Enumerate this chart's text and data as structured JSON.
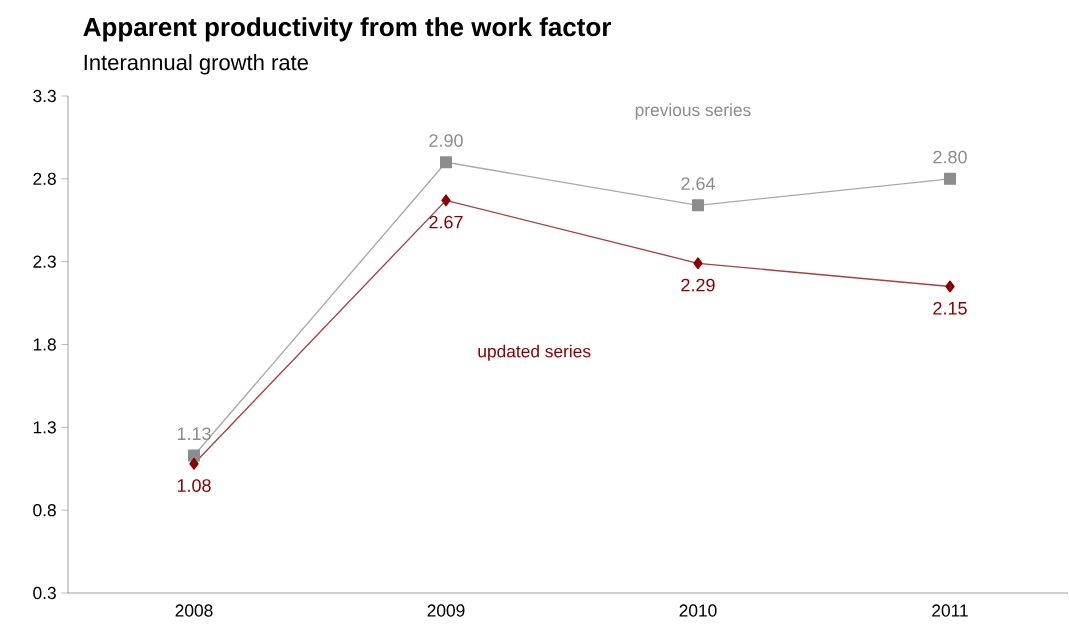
{
  "chart_data": {
    "type": "line",
    "title": "Apparent productivity from the work factor",
    "subtitle": "Interannual growth rate",
    "categories": [
      "2008",
      "2009",
      "2010",
      "2011"
    ],
    "series": [
      {
        "name": "previous series",
        "color": "#8c8c8c",
        "marker": "square",
        "values": [
          1.13,
          2.9,
          2.64,
          2.8
        ],
        "value_labels": [
          "1.13",
          "2.90",
          "2.64",
          "2.80"
        ]
      },
      {
        "name": "updated series",
        "color": "#8b0000",
        "marker": "diamond",
        "values": [
          1.08,
          2.67,
          2.29,
          2.15
        ],
        "value_labels": [
          "1.08",
          "2.67",
          "2.29",
          "2.15"
        ]
      }
    ],
    "ylim": [
      0.3,
      3.3
    ],
    "yticks": [
      0.3,
      0.8,
      1.3,
      1.8,
      2.3,
      2.8,
      3.3
    ]
  }
}
